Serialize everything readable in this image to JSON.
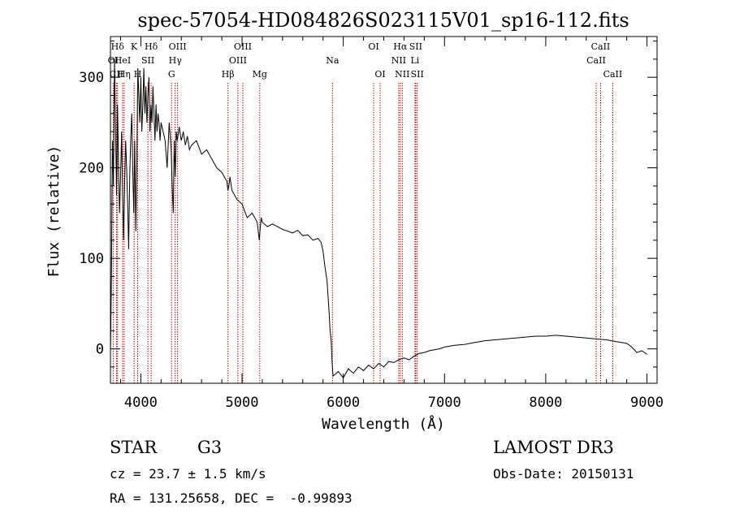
{
  "chart_data": {
    "type": "line",
    "title": "spec-57054-HD084826S023115V01_sp16-112.fits",
    "xlabel": "Wavelength (Å)",
    "ylabel": "Flux (relative)",
    "xlim": [
      3700,
      9100
    ],
    "ylim": [
      -38,
      345
    ],
    "xticks": [
      4000,
      5000,
      6000,
      7000,
      8000,
      9000
    ],
    "yticks": [
      0,
      100,
      200,
      300
    ],
    "grid": false,
    "line_color": "#000000",
    "marker_color": "#cc0000",
    "series": [
      {
        "name": "spectrum",
        "x": [
          3700,
          3710,
          3720,
          3730,
          3740,
          3750,
          3760,
          3770,
          3780,
          3790,
          3800,
          3810,
          3820,
          3830,
          3840,
          3850,
          3860,
          3870,
          3880,
          3890,
          3900,
          3910,
          3920,
          3930,
          3940,
          3950,
          3960,
          3970,
          3980,
          3990,
          4000,
          4010,
          4020,
          4030,
          4040,
          4050,
          4060,
          4070,
          4080,
          4090,
          4100,
          4110,
          4120,
          4130,
          4140,
          4150,
          4160,
          4170,
          4180,
          4190,
          4200,
          4220,
          4240,
          4260,
          4280,
          4300,
          4310,
          4320,
          4330,
          4340,
          4350,
          4360,
          4380,
          4400,
          4420,
          4440,
          4460,
          4480,
          4500,
          4550,
          4600,
          4650,
          4700,
          4750,
          4800,
          4850,
          4860,
          4870,
          4880,
          4900,
          4950,
          5000,
          5050,
          5100,
          5150,
          5170,
          5180,
          5190,
          5200,
          5250,
          5300,
          5350,
          5400,
          5450,
          5500,
          5550,
          5600,
          5650,
          5700,
          5750,
          5780,
          5800,
          5820,
          5840,
          5860,
          5870,
          5880,
          5890,
          5895,
          5900,
          5920,
          5950,
          6000,
          6050,
          6100,
          6150,
          6200,
          6250,
          6300,
          6350,
          6400,
          6450,
          6500,
          6550,
          6600,
          6650,
          6700,
          6750,
          6800,
          6850,
          6900,
          6950,
          7000,
          7100,
          7200,
          7300,
          7400,
          7500,
          7600,
          7700,
          7800,
          7900,
          8000,
          8100,
          8200,
          8300,
          8400,
          8500,
          8600,
          8700,
          8800,
          8850,
          8900,
          8950,
          9000
        ],
        "y": [
          -5,
          80,
          230,
          180,
          320,
          250,
          170,
          270,
          200,
          150,
          190,
          240,
          170,
          120,
          180,
          230,
          200,
          160,
          110,
          190,
          230,
          260,
          200,
          150,
          230,
          130,
          200,
          310,
          280,
          250,
          300,
          240,
          270,
          310,
          260,
          290,
          250,
          280,
          300,
          240,
          270,
          250,
          290,
          260,
          230,
          270,
          240,
          260,
          250,
          230,
          250,
          240,
          230,
          200,
          250,
          220,
          180,
          150,
          230,
          190,
          240,
          230,
          245,
          230,
          240,
          225,
          235,
          220,
          225,
          230,
          215,
          220,
          210,
          200,
          195,
          185,
          175,
          180,
          190,
          175,
          165,
          160,
          145,
          150,
          140,
          120,
          135,
          145,
          140,
          135,
          138,
          135,
          132,
          130,
          128,
          131,
          125,
          126,
          120,
          122,
          118,
          108,
          90,
          75,
          40,
          20,
          10,
          -15,
          -25,
          -30,
          -28,
          -25,
          -32,
          -22,
          -27,
          -20,
          -24,
          -18,
          -22,
          -16,
          -20,
          -14,
          -15,
          -12,
          -10,
          -12,
          -8,
          -5,
          -4,
          -2,
          -1,
          0,
          2,
          4,
          5,
          7,
          9,
          10,
          11,
          12,
          13,
          14,
          14,
          15,
          14,
          13,
          12,
          11,
          10,
          8,
          6,
          2,
          -4,
          -2,
          -6
        ]
      }
    ],
    "line_markers": [
      {
        "label": "Hδ",
        "row": 1,
        "x": 3770
      },
      {
        "label": "OI",
        "row": 2,
        "x": 3727
      },
      {
        "label": "CII",
        "row": 3,
        "x": 3760
      },
      {
        "label": "HeI",
        "row": 2,
        "x": 3820
      },
      {
        "label": "Hη",
        "row": 3,
        "x": 3835
      },
      {
        "label": "K",
        "row": 1,
        "x": 3934
      },
      {
        "label": "SII",
        "row": 2,
        "x": 4070
      },
      {
        "label": "H",
        "row": 3,
        "x": 3969
      },
      {
        "label": "Hδ",
        "row": 1,
        "x": 4102
      },
      {
        "label": "OIII",
        "row": 1,
        "x": 4363
      },
      {
        "label": "Hγ",
        "row": 2,
        "x": 4340
      },
      {
        "label": "G",
        "row": 3,
        "x": 4304
      },
      {
        "label": "OIII",
        "row": 1,
        "x": 5007
      },
      {
        "label": "OIII",
        "row": 2,
        "x": 4959
      },
      {
        "label": "Hβ",
        "row": 3,
        "x": 4861
      },
      {
        "label": "Mg",
        "row": 3,
        "x": 5175
      },
      {
        "label": "Na",
        "row": 2,
        "x": 5893
      },
      {
        "label": "OI",
        "row": 1,
        "x": 6300
      },
      {
        "label": "OI",
        "row": 3,
        "x": 6364
      },
      {
        "label": "Hα",
        "row": 1,
        "x": 6563
      },
      {
        "label": "SII",
        "row": 1,
        "x": 6716
      },
      {
        "label": "NII",
        "row": 2,
        "x": 6548
      },
      {
        "label": "Li",
        "row": 2,
        "x": 6708
      },
      {
        "label": "NII",
        "row": 3,
        "x": 6583
      },
      {
        "label": "SII",
        "row": 3,
        "x": 6731
      },
      {
        "label": "CaII",
        "row": 1,
        "x": 8542
      },
      {
        "label": "CaII",
        "row": 2,
        "x": 8498
      },
      {
        "label": "CaII",
        "row": 3,
        "x": 8662
      }
    ]
  },
  "info": {
    "object_class": "STAR",
    "subclass": "G3",
    "survey": "LAMOST DR3",
    "redshift_text": "cz = 23.7 ± 1.5 km/s",
    "obs_date_text": "Obs-Date: 20150131",
    "coords_text": "RA = 131.25658, DEC =  -0.99893"
  }
}
